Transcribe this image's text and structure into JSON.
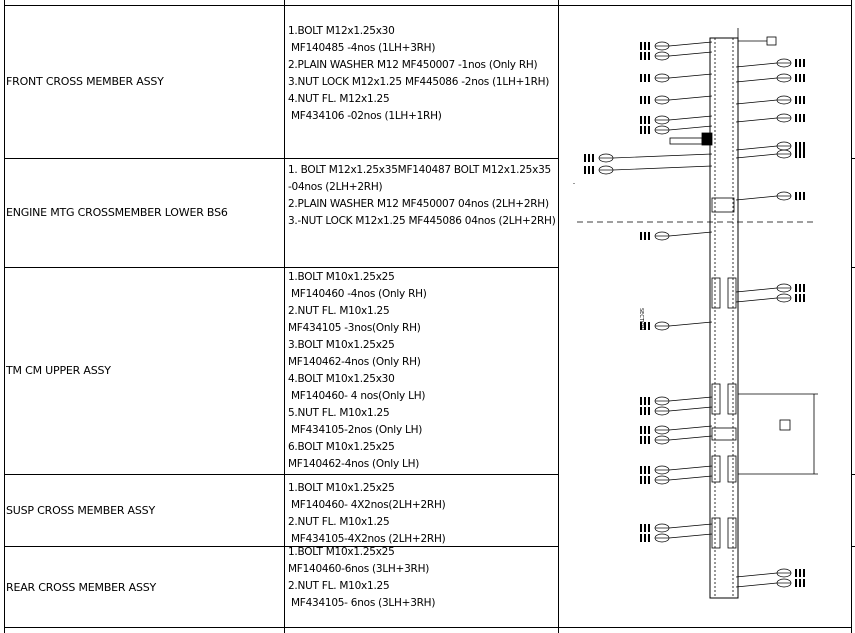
{
  "rows": [
    {
      "name": "FRONT CROSS MEMBER ASSY",
      "lines": [
        "1.BOLT M12x1.25x30",
        " MF140485 -4nos (1LH+3RH)",
        "2.PLAIN WASHER M12 MF450007 -1nos (Only RH)",
        "3.NUT LOCK M12x1.25 MF445086 -2nos (1LH+1RH)",
        "4.NUT FL. M12x1.25",
        " MF434106  -02nos  (1LH+1RH)"
      ]
    },
    {
      "name": "ENGINE MTG CROSSMEMBER LOWER BS6",
      "lines": [
        "1. BOLT M12x1.25x35MF140487 BOLT M12x1.25x35 -04nos (2LH+2RH)",
        "2.PLAIN WASHER M12 MF450007 04nos (2LH+2RH)",
        "3.-NUT LOCK M12x1.25 MF445086  04nos (2LH+2RH)"
      ]
    },
    {
      "name": "TM CM UPPER ASSY",
      "lines": [
        "1.BOLT M10x1.25x25",
        " MF140460 -4nos (Only RH)",
        "2.NUT FL. M10x1.25",
        "MF434105  -3nos(Only RH)",
        "3.BOLT M10x1.25x25",
        "MF140462-4nos (Only RH)",
        "4.BOLT M10x1.25x30",
        " MF140460- 4 nos(Only LH)",
        "5.NUT FL. M10x1.25",
        " MF434105-2nos (Only LH)",
        "6.BOLT M10x1.25x25",
        "MF140462-4nos (Only LH)"
      ]
    },
    {
      "name": "SUSP CROSS MEMBER ASSY",
      "lines": [
        "1.BOLT M10x1.25x25",
        " MF140460- 4X2nos(2LH+2RH)",
        "2.NUT FL. M10x1.25",
        " MF434105-4X2nos (2LH+2RH)"
      ]
    },
    {
      "name": "REAR CROSS MEMBER ASSY",
      "lines": [
        "1.BOLT M10x1.25x25",
        "MF140460-6nos (3LH+3RH)",
        "2.NUT FL. M10x1.25",
        " MF434105- 6nos (3LH+3RH)"
      ]
    }
  ],
  "drawing": {
    "description_icon": "chassis-frame-drawing",
    "line_color": "#000000"
  }
}
